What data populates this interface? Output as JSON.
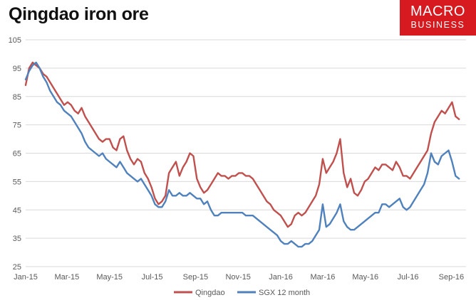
{
  "title": "Qingdao iron ore",
  "brand": {
    "line1": "MACRO",
    "line2": "BUSINESS"
  },
  "colors": {
    "qingdao": "#c0504d",
    "sgx": "#4f81bd",
    "grid": "#d9d9d9",
    "brand": "#d71920"
  },
  "chart_data": {
    "type": "line",
    "title": "Qingdao iron ore",
    "xlabel": "",
    "ylabel": "",
    "ylim": [
      25,
      105
    ],
    "yticks": [
      25,
      35,
      45,
      55,
      65,
      75,
      85,
      95,
      105
    ],
    "x_range": [
      0,
      630
    ],
    "x_ticks": [
      {
        "label": "Jan-15",
        "x": 0
      },
      {
        "label": "Mar-15",
        "x": 59
      },
      {
        "label": "May-15",
        "x": 120
      },
      {
        "label": "Jul-15",
        "x": 181
      },
      {
        "label": "Sep-15",
        "x": 243
      },
      {
        "label": "Nov-15",
        "x": 304
      },
      {
        "label": "Jan-16",
        "x": 365
      },
      {
        "label": "Mar-16",
        "x": 425
      },
      {
        "label": "May-16",
        "x": 486
      },
      {
        "label": "Jul-16",
        "x": 547
      },
      {
        "label": "Sep-16",
        "x": 609
      }
    ],
    "grid": true,
    "legend": "bottom",
    "series": [
      {
        "name": "Qingdao",
        "color": "#c0504d",
        "x": [
          0,
          5,
          10,
          15,
          20,
          25,
          30,
          35,
          40,
          45,
          50,
          55,
          60,
          65,
          70,
          75,
          80,
          85,
          90,
          95,
          100,
          105,
          110,
          115,
          120,
          125,
          130,
          135,
          140,
          145,
          150,
          155,
          160,
          165,
          170,
          175,
          180,
          185,
          190,
          195,
          200,
          205,
          210,
          215,
          220,
          225,
          230,
          235,
          240,
          245,
          250,
          255,
          260,
          265,
          270,
          275,
          280,
          285,
          290,
          295,
          300,
          305,
          310,
          315,
          320,
          325,
          330,
          335,
          340,
          345,
          350,
          355,
          360,
          365,
          370,
          375,
          380,
          385,
          390,
          395,
          400,
          405,
          410,
          415,
          420,
          425,
          430,
          435,
          440,
          445,
          450,
          455,
          460,
          465,
          470,
          475,
          480,
          485,
          490,
          495,
          500,
          505,
          510,
          515,
          520,
          525,
          530,
          535,
          540,
          545,
          550,
          555,
          560,
          565,
          570,
          575,
          580,
          585,
          590,
          595,
          600,
          605,
          610,
          615,
          620
        ],
        "values": [
          89,
          95,
          97,
          96,
          95,
          93,
          92,
          90,
          88,
          86,
          84,
          82,
          83,
          82,
          80,
          79,
          81,
          78,
          76,
          74,
          72,
          70,
          69,
          70,
          70,
          67,
          66,
          70,
          71,
          66,
          63,
          61,
          63,
          62,
          58,
          56,
          53,
          49,
          47,
          48,
          50,
          58,
          60,
          62,
          57,
          60,
          62,
          65,
          64,
          56,
          53,
          51,
          52,
          54,
          56,
          58,
          57,
          57,
          56,
          57,
          57,
          58,
          58,
          57,
          57,
          56,
          54,
          52,
          50,
          48,
          47,
          45,
          44,
          43,
          41,
          39,
          40,
          43,
          44,
          43,
          44,
          46,
          48,
          50,
          54,
          63,
          58,
          60,
          62,
          65,
          70,
          58,
          53,
          56,
          51,
          50,
          52,
          55,
          56,
          58,
          60,
          59,
          61,
          61,
          60,
          59,
          62,
          60,
          57,
          57,
          56,
          58,
          60,
          62,
          64,
          66,
          72,
          76,
          78,
          80,
          79,
          81,
          83,
          78,
          77
        ],
        "end_label": ""
      },
      {
        "name": "SGX 12 month",
        "color": "#4f81bd",
        "x": [
          0,
          5,
          10,
          15,
          20,
          25,
          30,
          35,
          40,
          45,
          50,
          55,
          60,
          65,
          70,
          75,
          80,
          85,
          90,
          95,
          100,
          105,
          110,
          115,
          120,
          125,
          130,
          135,
          140,
          145,
          150,
          155,
          160,
          165,
          170,
          175,
          180,
          185,
          190,
          195,
          200,
          205,
          210,
          215,
          220,
          225,
          230,
          235,
          240,
          245,
          250,
          255,
          260,
          265,
          270,
          275,
          280,
          285,
          290,
          295,
          300,
          305,
          310,
          315,
          320,
          325,
          330,
          335,
          340,
          345,
          350,
          355,
          360,
          365,
          370,
          375,
          380,
          385,
          390,
          395,
          400,
          405,
          410,
          415,
          420,
          425,
          430,
          435,
          440,
          445,
          450,
          455,
          460,
          465,
          470,
          475,
          480,
          485,
          490,
          495,
          500,
          505,
          510,
          515,
          520,
          525,
          530,
          535,
          540,
          545,
          550,
          555,
          560,
          565,
          570,
          575,
          580,
          585,
          590,
          595,
          600,
          605,
          610,
          615,
          620
        ],
        "values": [
          91,
          94,
          96,
          97,
          95,
          92,
          90,
          87,
          85,
          83,
          82,
          80,
          79,
          78,
          76,
          74,
          72,
          69,
          67,
          66,
          65,
          64,
          65,
          63,
          62,
          61,
          60,
          62,
          60,
          58,
          57,
          56,
          55,
          56,
          54,
          52,
          50,
          47,
          46,
          46,
          48,
          52,
          50,
          50,
          51,
          50,
          50,
          51,
          50,
          49,
          49,
          47,
          48,
          45,
          43,
          43,
          44,
          44,
          44,
          44,
          44,
          44,
          44,
          43,
          43,
          43,
          42,
          41,
          40,
          39,
          38,
          37,
          36,
          34,
          33,
          33,
          34,
          33,
          32,
          32,
          33,
          33,
          34,
          36,
          38,
          47,
          39,
          40,
          42,
          44,
          47,
          41,
          39,
          38,
          38,
          39,
          40,
          41,
          42,
          43,
          44,
          44,
          47,
          47,
          46,
          47,
          48,
          49,
          46,
          45,
          46,
          48,
          50,
          52,
          54,
          58,
          65,
          62,
          61,
          64,
          65,
          66,
          62,
          57,
          56
        ],
        "end_label": ""
      }
    ]
  },
  "legend": {
    "items": [
      {
        "label": "Qingdao"
      },
      {
        "label": "SGX 12 month"
      }
    ]
  }
}
